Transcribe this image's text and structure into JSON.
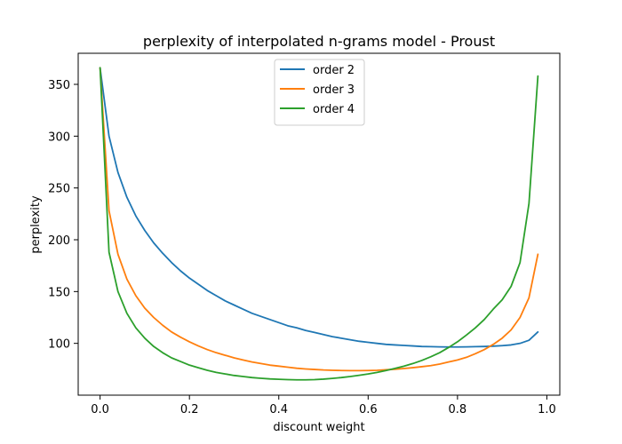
{
  "chart_data": {
    "type": "line",
    "title": "perplexity of interpolated n-grams model - Proust",
    "xlabel": "discount weight",
    "ylabel": "perplexity",
    "xlim": [
      -0.049,
      1.029
    ],
    "ylim": [
      50.0,
      380.0
    ],
    "x_ticks": [
      0.0,
      0.2,
      0.4,
      0.6,
      0.8,
      1.0
    ],
    "x_tick_labels": [
      "0.0",
      "0.2",
      "0.4",
      "0.6",
      "0.8",
      "1.0"
    ],
    "y_ticks": [
      100,
      150,
      200,
      250,
      300,
      350
    ],
    "y_tick_labels": [
      "100",
      "150",
      "200",
      "250",
      "300",
      "350"
    ],
    "grid": false,
    "legend_position": "top-center",
    "x": [
      0.0,
      0.02,
      0.04,
      0.06,
      0.08,
      0.1,
      0.12,
      0.14,
      0.16,
      0.18,
      0.2,
      0.22,
      0.24,
      0.26,
      0.28,
      0.3,
      0.32,
      0.34,
      0.36,
      0.38,
      0.4,
      0.42,
      0.44,
      0.46,
      0.48,
      0.5,
      0.52,
      0.54,
      0.56,
      0.58,
      0.6,
      0.62,
      0.64,
      0.66,
      0.68,
      0.7,
      0.72,
      0.74,
      0.76,
      0.78,
      0.8,
      0.82,
      0.84,
      0.86,
      0.88,
      0.9,
      0.92,
      0.94,
      0.96,
      0.98
    ],
    "series": [
      {
        "name": "order 2",
        "color": "#1f77b4",
        "values": [
          366,
          300,
          265,
          241,
          223,
          209,
          197,
          187,
          178,
          170,
          163,
          157,
          151,
          146,
          141,
          137,
          133,
          129,
          126,
          123,
          120,
          117,
          115,
          112.5,
          110.5,
          108.5,
          106.5,
          105,
          103.5,
          102,
          101,
          100,
          99,
          98.5,
          98,
          97.5,
          97,
          96.8,
          96.6,
          96.5,
          96.5,
          96.6,
          96.8,
          97,
          97.3,
          97.8,
          98.5,
          100,
          103,
          111
        ]
      },
      {
        "name": "order 3",
        "color": "#ff7f0e",
        "values": [
          366,
          228,
          186,
          162,
          146,
          134,
          125,
          117.5,
          111,
          106,
          101.5,
          97.5,
          94,
          91,
          88.5,
          86,
          84,
          82,
          80.5,
          79,
          78,
          77,
          76,
          75.3,
          74.8,
          74.3,
          74,
          73.8,
          73.7,
          73.7,
          73.8,
          74,
          74.5,
          75,
          75.7,
          76.5,
          77.5,
          78.5,
          80,
          82,
          84,
          86.5,
          90,
          94,
          99,
          105,
          113,
          125,
          144,
          186
        ]
      },
      {
        "name": "order 4",
        "color": "#2ca02c",
        "values": [
          366,
          188,
          150,
          129,
          115,
          105,
          97,
          91,
          86,
          82.5,
          79,
          76.5,
          74,
          72,
          70.5,
          69,
          68,
          67,
          66.3,
          65.7,
          65.3,
          65,
          64.8,
          64.8,
          65,
          65.5,
          66.2,
          67,
          68,
          69.2,
          70.5,
          72,
          73.8,
          75.8,
          78,
          80.5,
          83.5,
          87,
          91,
          96,
          101.5,
          108,
          115,
          123,
          133,
          142,
          155,
          178,
          235,
          358
        ]
      }
    ]
  }
}
